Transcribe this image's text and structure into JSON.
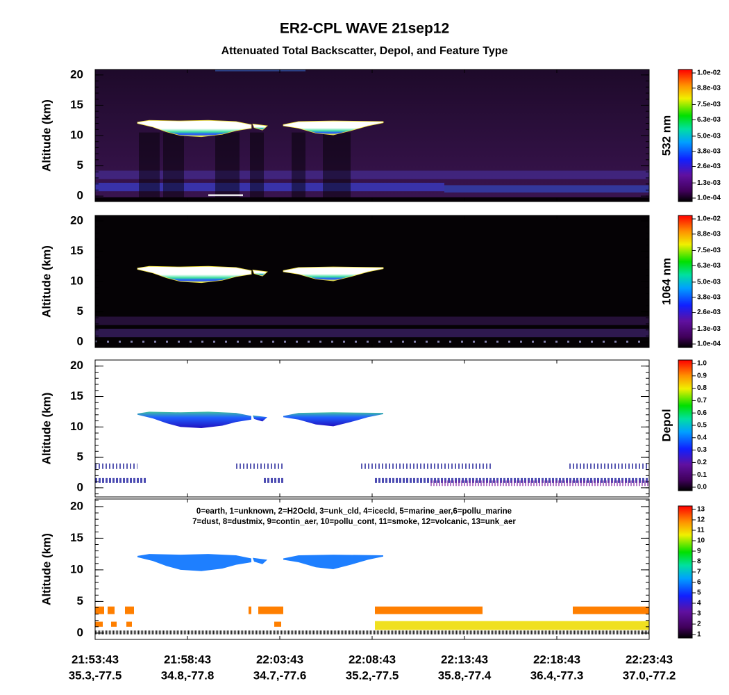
{
  "title": "ER2-CPL WAVE 21sep12",
  "subtitle": "Attenuated Total Backscatter, Depol, and Feature Type",
  "xaxis": {
    "time_labels": [
      "21:53:43",
      "21:58:43",
      "22:03:43",
      "22:08:43",
      "22:13:43",
      "22:18:43",
      "22:23:43"
    ],
    "position_labels": [
      "35.3,-77.5",
      "34.8,-77.8",
      "34.7,-77.6",
      "35.2,-77.5",
      "35.8,-77.4",
      "36.4,-77.3",
      "37.0,-77.2"
    ]
  },
  "chart_data": [
    {
      "type": "heatmap",
      "ylabel": "Altitude (km)",
      "ylim": [
        -0.9,
        20.9
      ],
      "yticks": [
        0,
        5,
        10,
        15,
        20
      ],
      "colorbar_label": "532 nm",
      "clim": [
        0.0001,
        0.01
      ],
      "cticks": [
        {
          "value": 0.0001,
          "label": "1.0e-04"
        },
        {
          "value": 0.0013,
          "label": "1.3e-03"
        },
        {
          "value": 0.0026,
          "label": "2.6e-03"
        },
        {
          "value": 0.0038,
          "label": "3.8e-03"
        },
        {
          "value": 0.005,
          "label": "5.0e-03"
        },
        {
          "value": 0.0063,
          "label": "6.3e-03"
        },
        {
          "value": 0.0075,
          "label": "7.5e-03"
        },
        {
          "value": 0.0088,
          "label": "8.8e-03"
        },
        {
          "value": 0.01,
          "label": "1.0e-02"
        }
      ]
    },
    {
      "type": "heatmap",
      "ylabel": "Altitude (km)",
      "ylim": [
        -0.9,
        20.9
      ],
      "yticks": [
        0,
        5,
        10,
        15,
        20
      ],
      "colorbar_label": "1064 nm",
      "clim": [
        0.0001,
        0.01
      ],
      "cticks": [
        {
          "value": 0.0001,
          "label": "1.0e-04"
        },
        {
          "value": 0.0013,
          "label": "1.3e-03"
        },
        {
          "value": 0.0026,
          "label": "2.6e-03"
        },
        {
          "value": 0.0038,
          "label": "3.8e-03"
        },
        {
          "value": 0.005,
          "label": "5.0e-03"
        },
        {
          "value": 0.0063,
          "label": "6.3e-03"
        },
        {
          "value": 0.0075,
          "label": "7.5e-03"
        },
        {
          "value": 0.0088,
          "label": "8.8e-03"
        },
        {
          "value": 0.01,
          "label": "1.0e-02"
        }
      ]
    },
    {
      "type": "heatmap",
      "ylabel": "Altitude (km)",
      "ylim": [
        -1.5,
        21
      ],
      "yticks": [
        0,
        5,
        10,
        15,
        20
      ],
      "colorbar_label": "Depol",
      "clim": [
        0,
        1
      ],
      "cticks": [
        {
          "value": 0,
          "label": "0.0"
        },
        {
          "value": 0.1,
          "label": "0.1"
        },
        {
          "value": 0.2,
          "label": "0.2"
        },
        {
          "value": 0.3,
          "label": "0.3"
        },
        {
          "value": 0.4,
          "label": "0.4"
        },
        {
          "value": 0.5,
          "label": "0.5"
        },
        {
          "value": 0.6,
          "label": "0.6"
        },
        {
          "value": 0.7,
          "label": "0.7"
        },
        {
          "value": 0.8,
          "label": "0.8"
        },
        {
          "value": 0.9,
          "label": "0.9"
        },
        {
          "value": 1,
          "label": "1.0"
        }
      ]
    },
    {
      "type": "feature",
      "ylabel": "Altitude (km)",
      "ylim": [
        -1,
        21.2
      ],
      "yticks": [
        0,
        5,
        10,
        15,
        20
      ],
      "annotations": [
        "0=earth, 1=unknown, 2=H2Ocld, 3=unk_cld, 4=icecld, 5=marine_aer,6=pollu_marine",
        "7=dust, 8=dustmix, 9=contin_aer, 10=pollu_cont, 11=smoke, 12=volcanic, 13=unk_aer"
      ],
      "clim": [
        1,
        13
      ],
      "cticks": [
        1,
        2,
        3,
        4,
        5,
        6,
        7,
        8,
        9,
        10,
        11,
        12,
        13
      ]
    }
  ]
}
